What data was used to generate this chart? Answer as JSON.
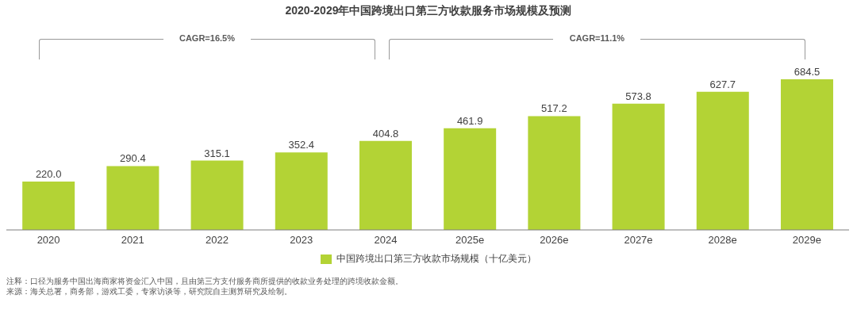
{
  "chart_data": {
    "type": "bar",
    "title": "2020-2029年中国跨境出口第三方收款服务市场规模及预测",
    "categories": [
      "2020",
      "2021",
      "2022",
      "2023",
      "2024",
      "2025e",
      "2026e",
      "2027e",
      "2028e",
      "2029e"
    ],
    "series": [
      {
        "name": "中国跨境出口第三方收款市场规模（十亿美元）",
        "color": "#b3d335",
        "values": [
          220.0,
          290.4,
          315.1,
          352.4,
          404.8,
          461.9,
          517.2,
          573.8,
          627.7,
          684.5
        ],
        "value_labels": [
          "220.0",
          "290.4",
          "315.1",
          "352.4",
          "404.8",
          "461.9",
          "517.2",
          "573.8",
          "627.7",
          "684.5"
        ]
      }
    ],
    "legend": "bottom",
    "grid": false,
    "annotations": [
      "CAGR=16.5%",
      "CAGR=11.1%",
      "注释：口径为服务中国出海商家将资金汇入中国，且由第三方支付服务商所提供的收款业务处理的跨境收款金额。",
      "来源：海关总署，商务部，游戏工委，专家访谈等，研究院自主测算研究及绘制。"
    ]
  }
}
